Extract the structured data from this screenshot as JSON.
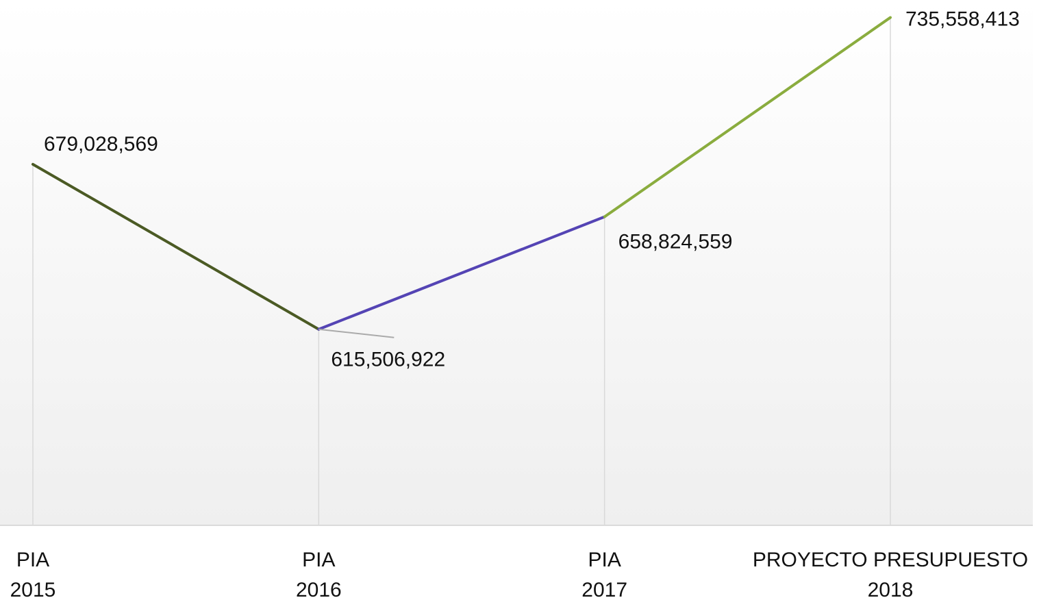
{
  "chart_data": {
    "type": "line",
    "categories": [
      "PIA 2015",
      "PIA 2016",
      "PIA 2017",
      "PROYECTO PRESUPUESTO 2018"
    ],
    "values": [
      679028569,
      615506922,
      658824559,
      735558413
    ],
    "value_labels": [
      "679,028,569",
      "615,506,922",
      "658,824,559",
      "735,558,413"
    ],
    "segment_colors": [
      "#4b5a24",
      "#5444b4",
      "#8aac3e"
    ],
    "ylim": [
      540000000,
      742300000
    ],
    "grid": true
  }
}
